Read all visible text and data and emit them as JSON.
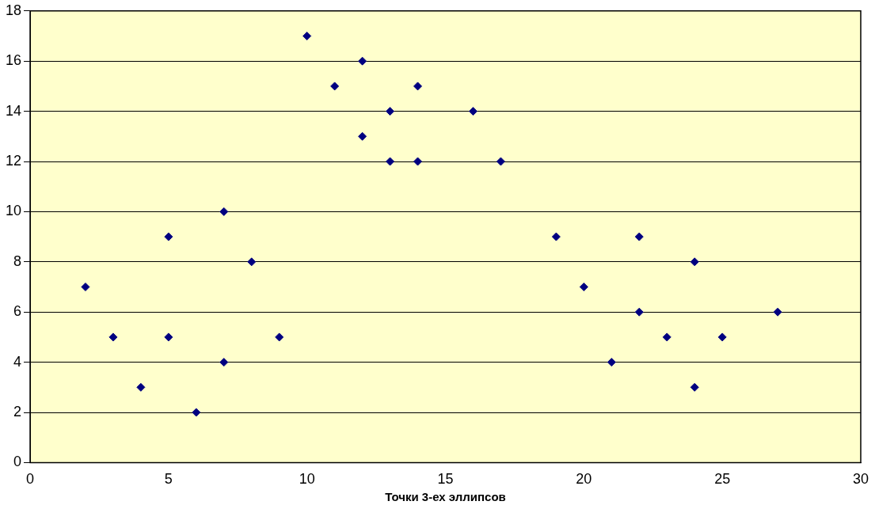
{
  "chart_data": {
    "type": "scatter",
    "xlabel": "Точки 3-ех эллипсов",
    "x": [
      2,
      3,
      4,
      5,
      5,
      6,
      7,
      7,
      8,
      9,
      10,
      11,
      12,
      12,
      13,
      13,
      14,
      14,
      16,
      17,
      19,
      20,
      21,
      22,
      22,
      23,
      24,
      24,
      25,
      27
    ],
    "values": [
      7,
      5,
      3,
      9,
      5,
      2,
      10,
      4,
      8,
      5,
      17,
      15,
      16,
      13,
      14,
      12,
      15,
      12,
      14,
      12,
      9,
      7,
      4,
      9,
      6,
      5,
      8,
      3,
      5,
      6
    ],
    "color": "#000080",
    "xlim": [
      0,
      30
    ],
    "xticks": [
      0,
      5,
      10,
      15,
      20,
      25,
      30
    ],
    "ylim": [
      0,
      18
    ],
    "yticks": [
      0,
      2,
      4,
      6,
      8,
      10,
      12,
      14,
      16,
      18
    ],
    "grid": "y",
    "legend": false,
    "marker": "diamond"
  }
}
